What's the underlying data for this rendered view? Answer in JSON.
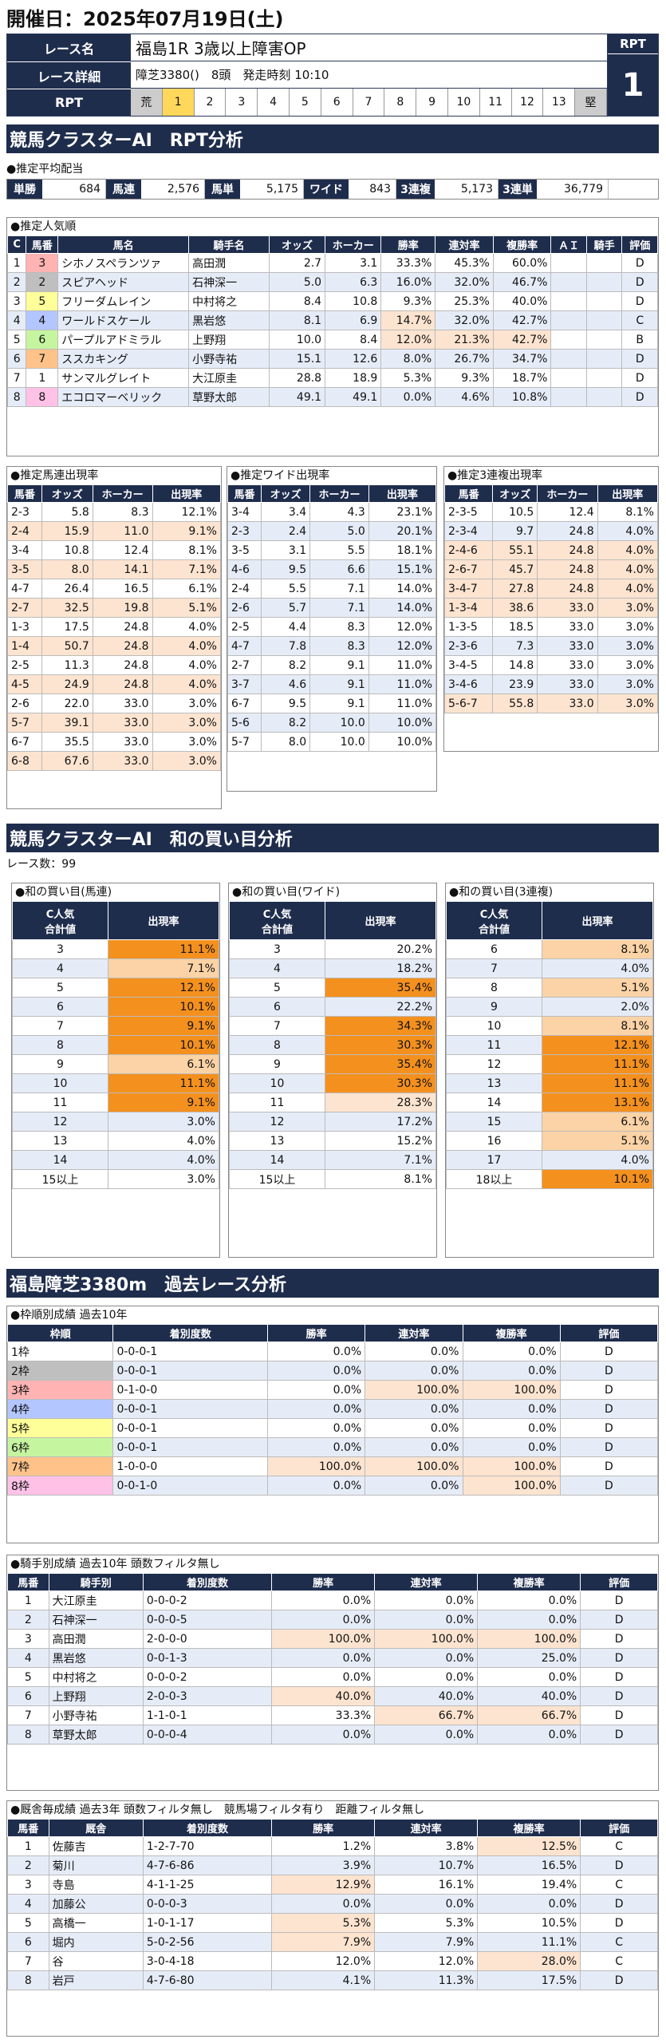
{
  "header": {
    "date": "開催日：2025年07月19日(土)"
  },
  "race": {
    "name_label": "レース名",
    "name": "福島1R 3歳以上障害OP",
    "detail_label": "レース詳細",
    "detail": "障芝3380()　8頭　発走時刻 10:10",
    "rpt_label": "RPT",
    "scale": [
      "荒",
      "1",
      "2",
      "3",
      "4",
      "5",
      "6",
      "7",
      "8",
      "9",
      "10",
      "11",
      "12",
      "13",
      "堅"
    ],
    "rpt_title": "RPT",
    "rpt_value": "1"
  },
  "section1": {
    "title": "競馬クラスターAI　RPT分析"
  },
  "payout": {
    "caption": "●推定平均配当",
    "items": [
      {
        "k": "単勝",
        "v": "684"
      },
      {
        "k": "馬連",
        "v": "2,576"
      },
      {
        "k": "馬単",
        "v": "5,175"
      },
      {
        "k": "ワイド",
        "v": "843"
      },
      {
        "k": "3連複",
        "v": "5,173"
      },
      {
        "k": "3連単",
        "v": "36,779"
      }
    ]
  },
  "popularity": {
    "caption": "●推定人気順",
    "headers": [
      "C",
      "馬番",
      "馬名",
      "騎手名",
      "オッズ",
      "ホーカー",
      "勝率",
      "連対率",
      "複勝率",
      "ＡＩ",
      "騎手",
      "評価"
    ],
    "rows": [
      [
        "1",
        "3",
        "シホノスペランツァ",
        "高田潤",
        "2.7",
        "3.1",
        "33.3%",
        "45.3%",
        "60.0%",
        "",
        "",
        "D"
      ],
      [
        "2",
        "2",
        "スピアヘッド",
        "石神深一",
        "5.0",
        "6.3",
        "16.0%",
        "32.0%",
        "46.7%",
        "",
        "",
        "D"
      ],
      [
        "3",
        "5",
        "フリーダムレイン",
        "中村将之",
        "8.4",
        "10.8",
        "9.3%",
        "25.3%",
        "40.0%",
        "",
        "",
        "D"
      ],
      [
        "4",
        "4",
        "ワールドスケール",
        "黒岩悠",
        "8.1",
        "6.9",
        "14.7%",
        "32.0%",
        "42.7%",
        "",
        "",
        "C"
      ],
      [
        "5",
        "6",
        "パープルアドミラル",
        "上野翔",
        "10.0",
        "8.4",
        "12.0%",
        "21.3%",
        "42.7%",
        "",
        "",
        "B"
      ],
      [
        "6",
        "7",
        "ススカキング",
        "小野寺祐",
        "15.1",
        "12.6",
        "8.0%",
        "26.7%",
        "34.7%",
        "",
        "",
        "D"
      ],
      [
        "7",
        "1",
        "サンマルグレイト",
        "大江原圭",
        "28.8",
        "18.9",
        "5.3%",
        "9.3%",
        "18.7%",
        "",
        "",
        "D"
      ],
      [
        "8",
        "8",
        "エコロマーベリック",
        "草野太郎",
        "49.1",
        "49.1",
        "0.0%",
        "4.6%",
        "10.8%",
        "",
        "",
        "D"
      ]
    ]
  },
  "umaren": {
    "caption": "●推定馬連出現率",
    "headers": [
      "馬番",
      "オッズ",
      "ホーカー",
      "出現率"
    ],
    "rows": [
      [
        "2-3",
        "5.8",
        "8.3",
        "12.1%"
      ],
      [
        "2-4",
        "15.9",
        "11.0",
        "9.1%"
      ],
      [
        "3-4",
        "10.8",
        "12.4",
        "8.1%"
      ],
      [
        "3-5",
        "8.0",
        "14.1",
        "7.1%"
      ],
      [
        "4-7",
        "26.4",
        "16.5",
        "6.1%"
      ],
      [
        "2-7",
        "32.5",
        "19.8",
        "5.1%"
      ],
      [
        "1-3",
        "17.5",
        "24.8",
        "4.0%"
      ],
      [
        "1-4",
        "50.7",
        "24.8",
        "4.0%"
      ],
      [
        "2-5",
        "11.3",
        "24.8",
        "4.0%"
      ],
      [
        "4-5",
        "24.9",
        "24.8",
        "4.0%"
      ],
      [
        "2-6",
        "22.0",
        "33.0",
        "3.0%"
      ],
      [
        "5-7",
        "39.1",
        "33.0",
        "3.0%"
      ],
      [
        "6-7",
        "35.5",
        "33.0",
        "3.0%"
      ],
      [
        "6-8",
        "67.6",
        "33.0",
        "3.0%"
      ]
    ]
  },
  "wide": {
    "caption": "●推定ワイド出現率",
    "headers": [
      "馬番",
      "オッズ",
      "ホーカー",
      "出現率"
    ],
    "rows": [
      [
        "3-4",
        "3.4",
        "4.3",
        "23.1%"
      ],
      [
        "2-3",
        "2.4",
        "5.0",
        "20.1%"
      ],
      [
        "3-5",
        "3.1",
        "5.5",
        "18.1%"
      ],
      [
        "4-6",
        "9.5",
        "6.6",
        "15.1%"
      ],
      [
        "2-4",
        "5.5",
        "7.1",
        "14.0%"
      ],
      [
        "2-6",
        "5.7",
        "7.1",
        "14.0%"
      ],
      [
        "2-5",
        "4.4",
        "8.3",
        "12.0%"
      ],
      [
        "4-7",
        "7.8",
        "8.3",
        "12.0%"
      ],
      [
        "2-7",
        "8.2",
        "9.1",
        "11.0%"
      ],
      [
        "3-7",
        "4.6",
        "9.1",
        "11.0%"
      ],
      [
        "6-7",
        "9.5",
        "9.1",
        "11.0%"
      ],
      [
        "5-6",
        "8.2",
        "10.0",
        "10.0%"
      ],
      [
        "5-7",
        "8.0",
        "10.0",
        "10.0%"
      ]
    ]
  },
  "sanrenpuku": {
    "caption": "●推定3連複出現率",
    "headers": [
      "馬番",
      "オッズ",
      "ホーカー",
      "出現率"
    ],
    "rows": [
      [
        "2-3-5",
        "10.5",
        "12.4",
        "8.1%"
      ],
      [
        "2-3-4",
        "9.7",
        "24.8",
        "4.0%"
      ],
      [
        "2-4-6",
        "55.1",
        "24.8",
        "4.0%"
      ],
      [
        "2-6-7",
        "45.7",
        "24.8",
        "4.0%"
      ],
      [
        "3-4-7",
        "27.8",
        "24.8",
        "4.0%"
      ],
      [
        "1-3-4",
        "38.6",
        "33.0",
        "3.0%"
      ],
      [
        "1-3-5",
        "18.5",
        "33.0",
        "3.0%"
      ],
      [
        "2-3-6",
        "7.3",
        "33.0",
        "3.0%"
      ],
      [
        "3-4-5",
        "14.8",
        "33.0",
        "3.0%"
      ],
      [
        "3-4-6",
        "23.9",
        "33.0",
        "3.0%"
      ],
      [
        "5-6-7",
        "55.8",
        "33.0",
        "3.0%"
      ]
    ]
  },
  "section2": {
    "title": "競馬クラスターAI　和の買い目分析",
    "races": "レース数：99"
  },
  "wa_umaren": {
    "caption": "●和の買い目(馬連)",
    "h1": "C人気",
    "h1b": "合計値",
    "h2": "出現率",
    "rows": [
      [
        "3",
        "11.1%"
      ],
      [
        "4",
        "7.1%"
      ],
      [
        "5",
        "12.1%"
      ],
      [
        "6",
        "10.1%"
      ],
      [
        "7",
        "9.1%"
      ],
      [
        "8",
        "10.1%"
      ],
      [
        "9",
        "6.1%"
      ],
      [
        "10",
        "11.1%"
      ],
      [
        "11",
        "9.1%"
      ],
      [
        "12",
        "3.0%"
      ],
      [
        "13",
        "4.0%"
      ],
      [
        "14",
        "4.0%"
      ],
      [
        "15以上",
        "3.0%"
      ]
    ]
  },
  "wa_wide": {
    "caption": "●和の買い目(ワイド)",
    "h1": "C人気",
    "h1b": "合計値",
    "h2": "出現率",
    "rows": [
      [
        "3",
        "20.2%"
      ],
      [
        "4",
        "18.2%"
      ],
      [
        "5",
        "35.4%"
      ],
      [
        "6",
        "22.2%"
      ],
      [
        "7",
        "34.3%"
      ],
      [
        "8",
        "30.3%"
      ],
      [
        "9",
        "35.4%"
      ],
      [
        "10",
        "30.3%"
      ],
      [
        "11",
        "28.3%"
      ],
      [
        "12",
        "17.2%"
      ],
      [
        "13",
        "15.2%"
      ],
      [
        "14",
        "7.1%"
      ],
      [
        "15以上",
        "8.1%"
      ]
    ]
  },
  "wa_sanren": {
    "caption": "●和の買い目(3連複)",
    "h1": "C人気",
    "h1b": "合計値",
    "h2": "出現率",
    "rows": [
      [
        "6",
        "8.1%"
      ],
      [
        "7",
        "4.0%"
      ],
      [
        "8",
        "5.1%"
      ],
      [
        "9",
        "2.0%"
      ],
      [
        "10",
        "8.1%"
      ],
      [
        "11",
        "12.1%"
      ],
      [
        "12",
        "11.1%"
      ],
      [
        "13",
        "11.1%"
      ],
      [
        "14",
        "13.1%"
      ],
      [
        "15",
        "6.1%"
      ],
      [
        "16",
        "5.1%"
      ],
      [
        "17",
        "4.0%"
      ],
      [
        "18以上",
        "10.1%"
      ]
    ]
  },
  "section3": {
    "title": "福島障芝3380m　過去レース分析"
  },
  "waku": {
    "caption": "●枠順別成績 過去10年",
    "headers": [
      "枠順",
      "着別度数",
      "勝率",
      "連対率",
      "複勝率",
      "評価"
    ],
    "rows": [
      [
        "1枠",
        "0-0-0-1",
        "0.0%",
        "0.0%",
        "0.0%",
        "D"
      ],
      [
        "2枠",
        "0-0-0-1",
        "0.0%",
        "0.0%",
        "0.0%",
        "D"
      ],
      [
        "3枠",
        "0-1-0-0",
        "0.0%",
        "100.0%",
        "100.0%",
        "D"
      ],
      [
        "4枠",
        "0-0-0-1",
        "0.0%",
        "0.0%",
        "0.0%",
        "D"
      ],
      [
        "5枠",
        "0-0-0-1",
        "0.0%",
        "0.0%",
        "0.0%",
        "D"
      ],
      [
        "6枠",
        "0-0-0-1",
        "0.0%",
        "0.0%",
        "0.0%",
        "D"
      ],
      [
        "7枠",
        "1-0-0-0",
        "100.0%",
        "100.0%",
        "100.0%",
        "D"
      ],
      [
        "8枠",
        "0-0-1-0",
        "0.0%",
        "0.0%",
        "100.0%",
        "D"
      ]
    ]
  },
  "jockey": {
    "caption": "●騎手別成績 過去10年 頭数フィルタ無し",
    "headers": [
      "馬番",
      "騎手別",
      "着別度数",
      "勝率",
      "連対率",
      "複勝率",
      "評価"
    ],
    "rows": [
      [
        "1",
        "大江原圭",
        "0-0-0-2",
        "0.0%",
        "0.0%",
        "0.0%",
        "D"
      ],
      [
        "2",
        "石神深一",
        "0-0-0-5",
        "0.0%",
        "0.0%",
        "0.0%",
        "D"
      ],
      [
        "3",
        "高田潤",
        "2-0-0-0",
        "100.0%",
        "100.0%",
        "100.0%",
        "D"
      ],
      [
        "4",
        "黒岩悠",
        "0-0-1-3",
        "0.0%",
        "0.0%",
        "25.0%",
        "D"
      ],
      [
        "5",
        "中村将之",
        "0-0-0-2",
        "0.0%",
        "0.0%",
        "0.0%",
        "D"
      ],
      [
        "6",
        "上野翔",
        "2-0-0-3",
        "40.0%",
        "40.0%",
        "40.0%",
        "D"
      ],
      [
        "7",
        "小野寺祐",
        "1-1-0-1",
        "33.3%",
        "66.7%",
        "66.7%",
        "D"
      ],
      [
        "8",
        "草野太郎",
        "0-0-0-4",
        "0.0%",
        "0.0%",
        "0.0%",
        "D"
      ]
    ]
  },
  "stable": {
    "caption": "●厩舎毎成績 過去3年 頭数フィルタ無し　競馬場フィルタ有り　距離フィルタ無し",
    "headers": [
      "馬番",
      "厩舎",
      "着別度数",
      "勝率",
      "連対率",
      "複勝率",
      "評価"
    ],
    "rows": [
      [
        "1",
        "佐藤吉",
        "1-2-7-70",
        "1.2%",
        "3.8%",
        "12.5%",
        "C"
      ],
      [
        "2",
        "菊川",
        "4-7-6-86",
        "3.9%",
        "10.7%",
        "16.5%",
        "D"
      ],
      [
        "3",
        "寺島",
        "4-1-1-25",
        "12.9%",
        "16.1%",
        "19.4%",
        "C"
      ],
      [
        "4",
        "加藤公",
        "0-0-0-3",
        "0.0%",
        "0.0%",
        "0.0%",
        "D"
      ],
      [
        "5",
        "高橋一",
        "1-0-1-17",
        "5.3%",
        "5.3%",
        "10.5%",
        "D"
      ],
      [
        "6",
        "堀内",
        "5-0-2-56",
        "7.9%",
        "7.9%",
        "11.1%",
        "C"
      ],
      [
        "7",
        "谷",
        "3-0-4-18",
        "12.0%",
        "12.0%",
        "28.0%",
        "C"
      ],
      [
        "8",
        "岩戸",
        "4-7-6-80",
        "4.1%",
        "11.3%",
        "17.5%",
        "D"
      ]
    ]
  },
  "colors": {
    "navy": "#1f2d4d",
    "orange": "#f4901e",
    "lightorange": "#fbd3a6",
    "peach": "#fde4d0",
    "alt": "#e6ecf7",
    "highlight_yellow": "#ffd75a"
  }
}
